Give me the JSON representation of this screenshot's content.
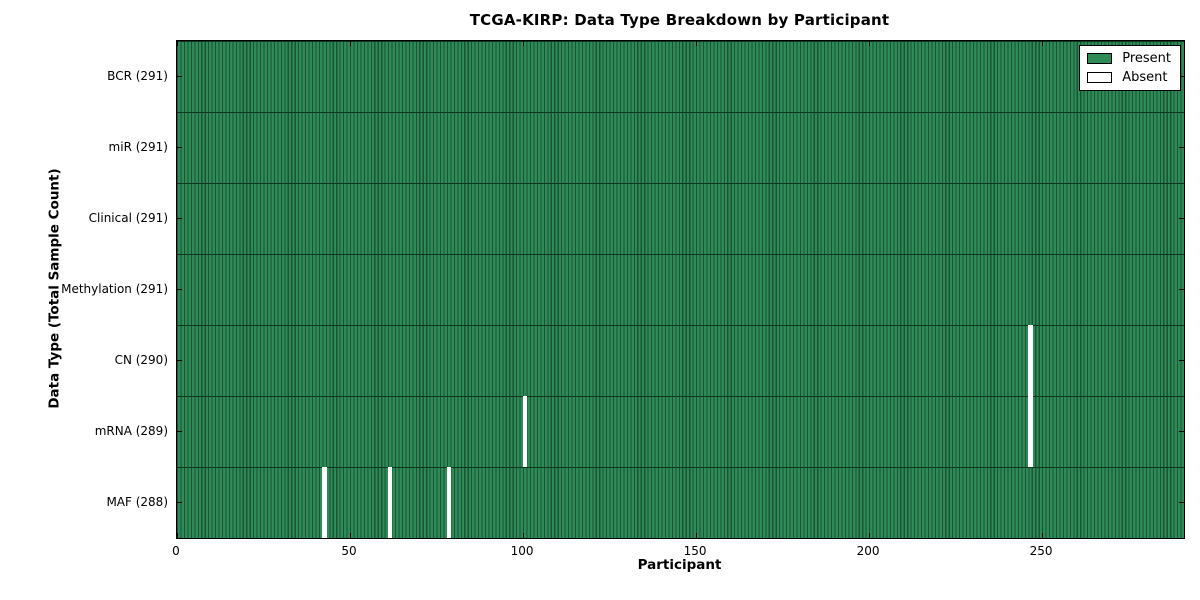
{
  "chart_data": {
    "type": "heatmap",
    "title": "TCGA-KIRP: Data Type Breakdown by Participant",
    "xlabel": "Participant",
    "ylabel": "Data Type (Total Sample Count)",
    "x_ticks": [
      0,
      50,
      100,
      150,
      200,
      250
    ],
    "xlim": [
      0,
      291
    ],
    "n_participants": 291,
    "grid": false,
    "legend_position": "upper right",
    "legend": [
      {
        "label": "Present",
        "color": "#2e8b57"
      },
      {
        "label": "Absent",
        "color": "#ffffff"
      }
    ],
    "rows": [
      {
        "label": "BCR (291)",
        "name": "BCR",
        "total": 291,
        "absent_participants": []
      },
      {
        "label": "miR (291)",
        "name": "miR",
        "total": 291,
        "absent_participants": []
      },
      {
        "label": "Clinical (291)",
        "name": "Clinical",
        "total": 291,
        "absent_participants": []
      },
      {
        "label": "Methylation (291)",
        "name": "Methylation",
        "total": 291,
        "absent_participants": []
      },
      {
        "label": "CN (290)",
        "name": "CN",
        "total": 290,
        "absent_participants": [
          246
        ]
      },
      {
        "label": "mRNA (289)",
        "name": "mRNA",
        "total": 289,
        "absent_participants": [
          100,
          246
        ]
      },
      {
        "label": "MAF (288)",
        "name": "MAF",
        "total": 288,
        "absent_participants": [
          42,
          61,
          78
        ]
      }
    ],
    "colors": {
      "present": "#2e8b57",
      "present_edge": "#1a5434",
      "row_divider": "#10361f",
      "absent": "#ffffff",
      "frame": "#000000",
      "background": "#ffffff",
      "text": "#000000"
    }
  }
}
